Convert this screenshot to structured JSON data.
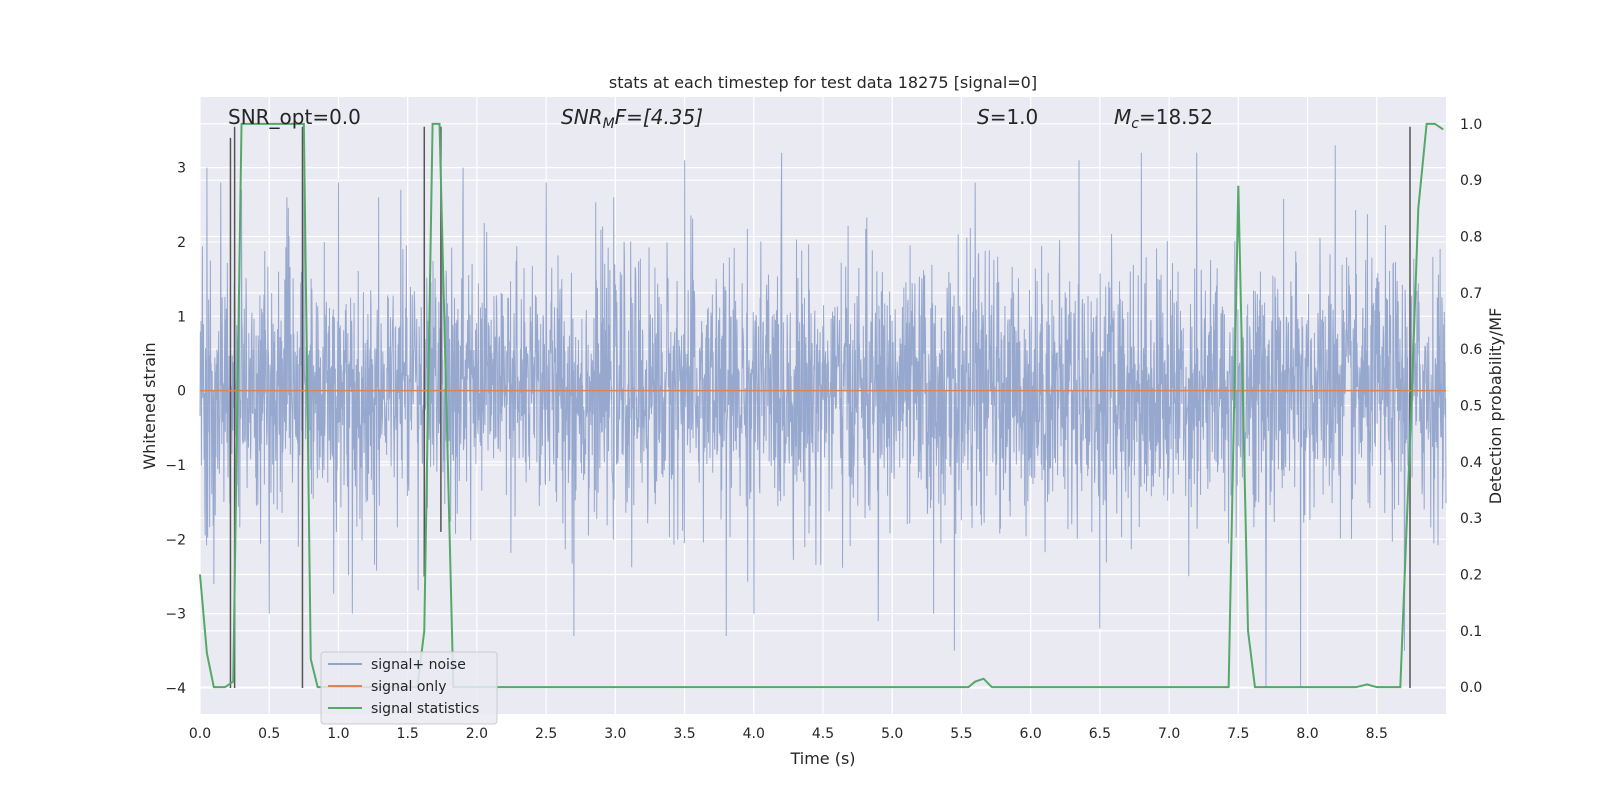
{
  "chart_data": {
    "type": "line",
    "title": "stats at each timestep for test data 18275 [signal=0]",
    "xlabel": "Time (s)",
    "ylabel": "Whitened strain",
    "y2label": "Detection probability/MF",
    "xlim": [
      0.0,
      9.0
    ],
    "ylim": [
      -4.35,
      3.95
    ],
    "y2lim": [
      -0.0476,
      1.0476
    ],
    "xticks": [
      "0.0",
      "0.5",
      "1.0",
      "1.5",
      "2.0",
      "2.5",
      "3.0",
      "3.5",
      "4.0",
      "4.5",
      "5.0",
      "5.5",
      "6.0",
      "6.5",
      "7.0",
      "7.5",
      "8.0",
      "8.5"
    ],
    "yticks": [
      "3",
      "2",
      "1",
      "0",
      "−1",
      "−2",
      "−3",
      "−4"
    ],
    "y2ticks": [
      "1.0",
      "0.9",
      "0.8",
      "0.7",
      "0.6",
      "0.5",
      "0.4",
      "0.3",
      "0.2",
      "0.1",
      "0.0"
    ],
    "grid": true,
    "legend_position": "lower-left",
    "annotations": {
      "snr_opt": "SNR_opt=0.0",
      "snr_mf_main": "SNR",
      "snr_mf_sub": "M",
      "snr_mf_tail": "F=[4.35]",
      "s_main": "S",
      "s_tail": "=1.0",
      "mc_main": "M",
      "mc_sub": "c",
      "mc_tail": "=18.52"
    },
    "series": [
      {
        "name": "signal+ noise",
        "color": "#92a4cc",
        "description_values": "whitened noise, roughly within -2 to 2, peaks up to 3.6 and down to -4.0",
        "notable_peaks": [
          [
            0.05,
            3.0
          ],
          [
            0.15,
            2.8
          ],
          [
            0.3,
            2.7
          ],
          [
            0.5,
            2.6
          ],
          [
            0.75,
            2.8
          ],
          [
            1.0,
            2.8
          ],
          [
            1.45,
            2.7
          ],
          [
            1.9,
            3.0
          ],
          [
            2.5,
            2.8
          ],
          [
            3.5,
            3.1
          ],
          [
            4.2,
            3.2
          ],
          [
            5.3,
            3.6
          ],
          [
            5.6,
            2.8
          ],
          [
            6.35,
            3.1
          ],
          [
            6.8,
            3.2
          ],
          [
            7.2,
            3.2
          ],
          [
            8.2,
            3.3
          ],
          [
            8.7,
            2.9
          ]
        ],
        "notable_troughs": [
          [
            0.1,
            -2.6
          ],
          [
            0.5,
            -3.0
          ],
          [
            1.1,
            -3.0
          ],
          [
            2.7,
            -3.3
          ],
          [
            3.8,
            -3.3
          ],
          [
            4.0,
            -3.0
          ],
          [
            4.9,
            -3.1
          ],
          [
            5.3,
            -3.0
          ],
          [
            5.45,
            -3.5
          ],
          [
            6.5,
            -3.2
          ],
          [
            7.7,
            -4.0
          ],
          [
            7.95,
            -4.0
          ],
          [
            8.7,
            -3.5
          ]
        ]
      },
      {
        "name": "signal only",
        "color": "#dd8452",
        "x": [
          0.0,
          9.0
        ],
        "y": [
          0.0,
          0.0
        ]
      },
      {
        "name": "signal statistics",
        "color": "#55a868",
        "axis": "right",
        "x": [
          0.0,
          0.05,
          0.1,
          0.18,
          0.24,
          0.3,
          0.7,
          0.75,
          0.8,
          0.85,
          0.9,
          1.57,
          1.62,
          1.68,
          1.73,
          1.78,
          1.83,
          1.88,
          5.55,
          5.6,
          5.66,
          5.72,
          7.38,
          7.43,
          7.5,
          7.57,
          7.62,
          8.35,
          8.43,
          8.5,
          8.6,
          8.67,
          8.75,
          8.8,
          8.86,
          8.92,
          8.98
        ],
        "y": [
          0.2,
          0.06,
          0.0,
          0.0,
          0.01,
          1.0,
          1.0,
          1.0,
          0.05,
          0.0,
          0.0,
          0.0,
          0.1,
          1.0,
          1.0,
          0.5,
          0.0,
          0.0,
          0.0,
          0.01,
          0.015,
          0.0,
          0.0,
          0.0,
          0.89,
          0.1,
          0.0,
          0.0,
          0.005,
          0.0,
          0.0,
          0.0,
          0.5,
          0.85,
          1.0,
          1.0,
          0.99
        ]
      }
    ],
    "vertical_markers": {
      "color": "#555555",
      "segments": [
        [
          0.22,
          -4.0,
          3.4
        ],
        [
          0.25,
          -4.0,
          3.55
        ],
        [
          0.74,
          -4.0,
          3.55
        ],
        [
          1.62,
          -2.5,
          3.55
        ],
        [
          1.74,
          -1.9,
          3.55
        ],
        [
          8.74,
          -4.0,
          3.55
        ]
      ]
    }
  }
}
